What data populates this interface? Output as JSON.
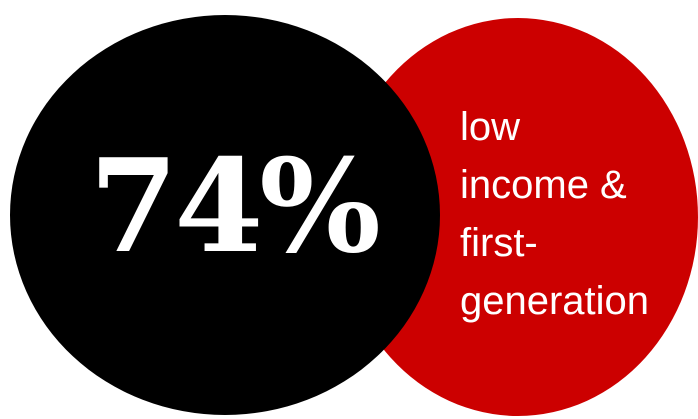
{
  "stat": {
    "value": "74%",
    "label_lines": [
      "low",
      "income &",
      "first-",
      "generation"
    ]
  },
  "colors": {
    "background": "#ffffff",
    "dark_circle": "#000000",
    "accent_circle": "#cc0000",
    "stat_text": "#ffffff",
    "label_text": "#ffffff"
  }
}
